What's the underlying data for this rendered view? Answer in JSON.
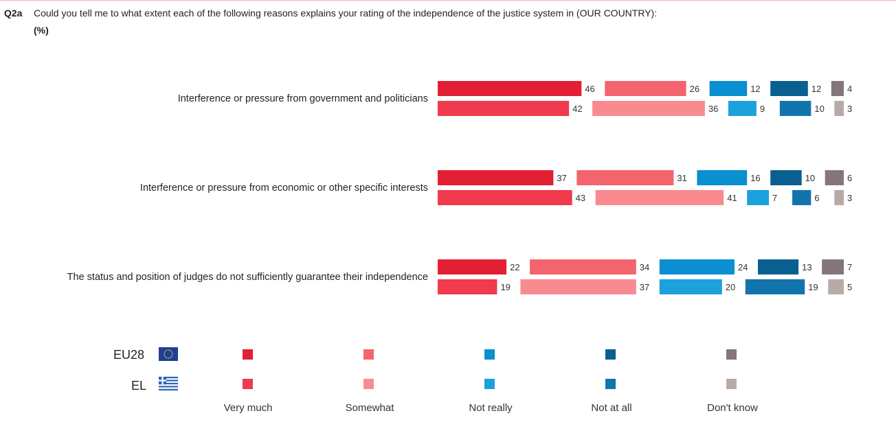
{
  "header": {
    "qid": "Q2a",
    "question": "Could you tell me to what extent each of the following reasons explains your rating of the independence of the justice system in (OUR COUNTRY):",
    "unit": "(%)"
  },
  "chart_data": {
    "type": "bar",
    "orientation": "horizontal",
    "stacked": "spaced",
    "categories": [
      "Interference or pressure from government and politicians",
      "Interference or pressure from economic or other specific interests",
      "The status and position of judges do not sufficiently guarantee their independence"
    ],
    "groups": [
      "EU28",
      "EL"
    ],
    "series": [
      {
        "name": "Very much",
        "colors": {
          "EU28": "#e31f35",
          "EL": "#f03a4d"
        },
        "values": {
          "EU28": [
            46,
            37,
            22
          ],
          "EL": [
            42,
            43,
            19
          ]
        }
      },
      {
        "name": "Somewhat",
        "colors": {
          "EU28": "#f4646e",
          "EL": "#f98a90"
        },
        "values": {
          "EU28": [
            26,
            31,
            34
          ],
          "EL": [
            36,
            41,
            37
          ]
        }
      },
      {
        "name": "Not really",
        "colors": {
          "EU28": "#0a8fd0",
          "EL": "#1ba1dc"
        },
        "values": {
          "EU28": [
            12,
            16,
            24
          ],
          "EL": [
            9,
            7,
            20
          ]
        }
      },
      {
        "name": "Not at all",
        "colors": {
          "EU28": "#0a5f91",
          "EL": "#1274ad"
        },
        "values": {
          "EU28": [
            12,
            10,
            13
          ],
          "EL": [
            10,
            6,
            19
          ]
        }
      },
      {
        "name": "Don't know",
        "colors": {
          "EU28": "#84767b",
          "EL": "#b8aaa5"
        },
        "values": {
          "EU28": [
            4,
            6,
            7
          ],
          "EL": [
            3,
            3,
            5
          ]
        }
      }
    ]
  },
  "legend": {
    "groups": [
      {
        "code": "EU28",
        "flag": "eu-flag-icon"
      },
      {
        "code": "EL",
        "flag": "greece-flag-icon"
      }
    ],
    "labels": [
      "Very much",
      "Somewhat",
      "Not really",
      "Not at all",
      "Don't know"
    ]
  }
}
